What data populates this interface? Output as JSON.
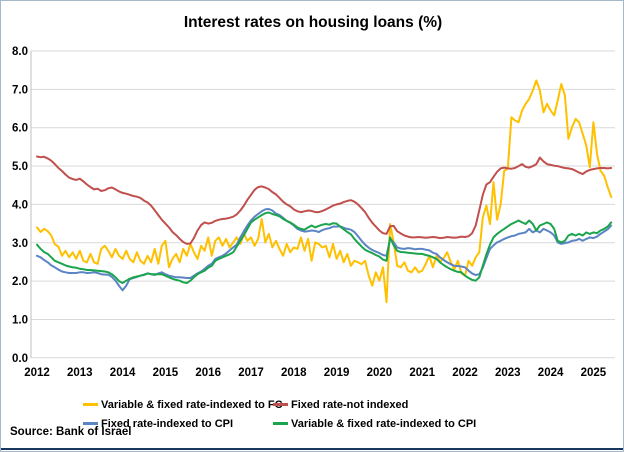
{
  "title": "Interest rates on housing loans (%)",
  "source": "Source: Bank of Israel",
  "colors": {
    "fc": "#FFC000",
    "not_indexed": "#C0504D",
    "fixed_cpi": "#5B84C4",
    "variable_cpi": "#1AA54C",
    "grid": "#D9D9D9",
    "axis": "#BFBFBF",
    "frame_border": "#A7B9C9",
    "bottom_rule": "#17375E"
  },
  "chart_data": {
    "type": "line",
    "title": "Interest rates on housing loans (%)",
    "xlabel": "",
    "ylabel": "",
    "ylim": [
      0.0,
      8.0
    ],
    "grid": true,
    "legend_position": "bottom",
    "x_unit": "month",
    "x_start": "2012-01",
    "x_end": "2025-06",
    "y_ticks": [
      "0.0",
      "1.0",
      "2.0",
      "3.0",
      "4.0",
      "5.0",
      "6.0",
      "7.0",
      "8.0"
    ],
    "x_tick_labels": [
      "2012",
      "2013",
      "2014",
      "2015",
      "2016",
      "2017",
      "2018",
      "2019",
      "2020",
      "2021",
      "2022",
      "2023",
      "2024",
      "2025"
    ],
    "series": [
      {
        "name": "Variable & fixed rate-indexed to FC",
        "color": "#FFC000",
        "values": [
          3.4,
          3.28,
          3.36,
          3.3,
          3.19,
          2.96,
          2.9,
          2.66,
          2.79,
          2.62,
          2.75,
          2.58,
          2.79,
          2.53,
          2.49,
          2.71,
          2.49,
          2.45,
          2.84,
          2.92,
          2.79,
          2.62,
          2.84,
          2.66,
          2.58,
          2.79,
          2.58,
          2.49,
          2.75,
          2.53,
          2.45,
          2.66,
          2.49,
          2.84,
          2.45,
          2.92,
          3.05,
          2.36,
          2.58,
          2.71,
          2.49,
          2.84,
          2.66,
          2.97,
          2.75,
          2.58,
          2.92,
          2.79,
          3.14,
          2.66,
          3.05,
          3.14,
          2.92,
          3.1,
          2.88,
          3.01,
          3.14,
          2.97,
          3.23,
          3.05,
          3.14,
          2.92,
          3.1,
          3.62,
          3.01,
          3.23,
          2.88,
          3.05,
          2.84,
          2.66,
          2.97,
          2.75,
          2.88,
          2.84,
          3.14,
          2.79,
          3.1,
          2.53,
          3.01,
          2.97,
          2.88,
          2.92,
          2.62,
          2.97,
          2.58,
          2.79,
          2.49,
          2.71,
          2.4,
          2.53,
          2.49,
          2.44,
          2.53,
          2.14,
          1.88,
          2.23,
          2.01,
          2.36,
          1.45,
          3.49,
          3.01,
          2.4,
          2.36,
          2.49,
          2.27,
          2.23,
          2.36,
          2.23,
          2.27,
          2.45,
          2.66,
          2.36,
          2.66,
          2.5,
          2.6,
          2.75,
          2.5,
          2.31,
          2.53,
          2.2,
          2.14,
          2.53,
          2.4,
          2.62,
          2.75,
          3.66,
          3.97,
          3.49,
          4.58,
          3.6,
          4.01,
          4.88,
          4.93,
          6.27,
          6.19,
          6.14,
          6.45,
          6.62,
          6.75,
          6.97,
          7.23,
          6.97,
          6.4,
          6.62,
          6.45,
          6.32,
          6.71,
          7.14,
          6.84,
          5.71,
          6.01,
          6.23,
          6.14,
          5.84,
          5.53,
          4.97,
          6.14,
          5.32,
          4.88,
          4.75,
          4.45,
          4.19
        ]
      },
      {
        "name": "Fixed rate-not indexed",
        "color": "#C0504D",
        "values": [
          5.25,
          5.23,
          5.24,
          5.2,
          5.14,
          5.05,
          4.95,
          4.87,
          4.78,
          4.7,
          4.66,
          4.64,
          4.67,
          4.6,
          4.52,
          4.45,
          4.39,
          4.41,
          4.35,
          4.37,
          4.42,
          4.44,
          4.39,
          4.34,
          4.3,
          4.28,
          4.25,
          4.22,
          4.2,
          4.17,
          4.1,
          4.05,
          3.97,
          3.85,
          3.72,
          3.6,
          3.5,
          3.4,
          3.28,
          3.2,
          3.1,
          3.02,
          2.97,
          2.98,
          3.12,
          3.32,
          3.46,
          3.53,
          3.5,
          3.52,
          3.57,
          3.6,
          3.62,
          3.63,
          3.65,
          3.68,
          3.74,
          3.84,
          3.97,
          4.12,
          4.25,
          4.38,
          4.45,
          4.47,
          4.44,
          4.4,
          4.32,
          4.26,
          4.17,
          4.07,
          4.0,
          3.95,
          3.87,
          3.82,
          3.8,
          3.82,
          3.84,
          3.83,
          3.8,
          3.8,
          3.83,
          3.87,
          3.92,
          3.97,
          4.0,
          4.02,
          4.06,
          4.09,
          4.11,
          4.07,
          4.0,
          3.9,
          3.8,
          3.65,
          3.52,
          3.42,
          3.32,
          3.25,
          3.23,
          3.43,
          3.44,
          3.3,
          3.24,
          3.19,
          3.16,
          3.14,
          3.14,
          3.15,
          3.14,
          3.13,
          3.14,
          3.15,
          3.14,
          3.12,
          3.13,
          3.15,
          3.14,
          3.13,
          3.14,
          3.16,
          3.15,
          3.17,
          3.25,
          3.45,
          3.85,
          4.25,
          4.52,
          4.58,
          4.72,
          4.85,
          4.94,
          4.96,
          4.94,
          4.93,
          4.95,
          5.0,
          5.05,
          4.98,
          4.96,
          5.0,
          5.05,
          5.22,
          5.12,
          5.05,
          5.03,
          5.01,
          5.0,
          4.97,
          4.95,
          4.94,
          4.92,
          4.88,
          4.83,
          4.79,
          4.86,
          4.9,
          4.92,
          4.94,
          4.95,
          4.95,
          4.94,
          4.95
        ]
      },
      {
        "name": "Fixed rate-indexed to CPI",
        "color": "#5B84C4",
        "values": [
          2.66,
          2.62,
          2.55,
          2.49,
          2.41,
          2.36,
          2.3,
          2.25,
          2.23,
          2.21,
          2.21,
          2.21,
          2.23,
          2.23,
          2.21,
          2.22,
          2.23,
          2.21,
          2.18,
          2.17,
          2.17,
          2.11,
          2.01,
          1.88,
          1.76,
          1.88,
          2.05,
          2.08,
          2.11,
          2.14,
          2.17,
          2.2,
          2.18,
          2.16,
          2.2,
          2.23,
          2.18,
          2.14,
          2.12,
          2.1,
          2.1,
          2.09,
          2.08,
          2.08,
          2.14,
          2.2,
          2.25,
          2.32,
          2.4,
          2.45,
          2.58,
          2.62,
          2.66,
          2.72,
          2.8,
          2.88,
          2.95,
          3.14,
          3.3,
          3.45,
          3.58,
          3.68,
          3.75,
          3.82,
          3.87,
          3.88,
          3.84,
          3.76,
          3.72,
          3.65,
          3.57,
          3.52,
          3.45,
          3.36,
          3.32,
          3.29,
          3.3,
          3.32,
          3.31,
          3.28,
          3.33,
          3.36,
          3.38,
          3.42,
          3.42,
          3.43,
          3.39,
          3.36,
          3.34,
          3.28,
          3.17,
          3.05,
          2.95,
          2.87,
          2.81,
          2.77,
          2.73,
          2.68,
          2.66,
          3.1,
          3.01,
          2.88,
          2.85,
          2.84,
          2.86,
          2.85,
          2.83,
          2.84,
          2.84,
          2.82,
          2.8,
          2.74,
          2.71,
          2.62,
          2.55,
          2.49,
          2.44,
          2.4,
          2.39,
          2.38,
          2.36,
          2.27,
          2.2,
          2.16,
          2.18,
          2.35,
          2.6,
          2.84,
          2.93,
          3.01,
          3.05,
          3.1,
          3.14,
          3.17,
          3.19,
          3.23,
          3.25,
          3.27,
          3.36,
          3.27,
          3.32,
          3.27,
          3.36,
          3.32,
          3.27,
          3.19,
          3.01,
          2.97,
          2.99,
          3.01,
          3.05,
          3.06,
          3.1,
          3.05,
          3.1,
          3.14,
          3.12,
          3.16,
          3.23,
          3.29,
          3.35,
          3.45
        ]
      },
      {
        "name": "Variable & fixed rate-indexed to CPI",
        "color": "#1AA54C",
        "values": [
          2.95,
          2.84,
          2.76,
          2.71,
          2.62,
          2.53,
          2.49,
          2.45,
          2.41,
          2.38,
          2.36,
          2.35,
          2.32,
          2.31,
          2.29,
          2.29,
          2.28,
          2.27,
          2.26,
          2.25,
          2.23,
          2.18,
          2.1,
          2.0,
          1.95,
          2.01,
          2.06,
          2.1,
          2.12,
          2.14,
          2.16,
          2.2,
          2.18,
          2.18,
          2.18,
          2.18,
          2.14,
          2.1,
          2.06,
          2.03,
          2.01,
          1.97,
          1.95,
          2.01,
          2.1,
          2.18,
          2.23,
          2.27,
          2.35,
          2.4,
          2.53,
          2.58,
          2.62,
          2.66,
          2.7,
          2.75,
          2.9,
          3.05,
          3.2,
          3.36,
          3.53,
          3.6,
          3.66,
          3.72,
          3.77,
          3.79,
          3.75,
          3.72,
          3.69,
          3.62,
          3.57,
          3.53,
          3.47,
          3.4,
          3.36,
          3.34,
          3.4,
          3.45,
          3.4,
          3.44,
          3.47,
          3.49,
          3.47,
          3.51,
          3.5,
          3.42,
          3.35,
          3.28,
          3.22,
          3.1,
          3.0,
          2.9,
          2.82,
          2.77,
          2.73,
          2.68,
          2.64,
          2.56,
          2.53,
          3.14,
          2.93,
          2.79,
          2.76,
          2.75,
          2.74,
          2.73,
          2.72,
          2.71,
          2.71,
          2.68,
          2.66,
          2.62,
          2.58,
          2.49,
          2.42,
          2.36,
          2.31,
          2.27,
          2.24,
          2.23,
          2.14,
          2.08,
          2.03,
          2.01,
          2.1,
          2.4,
          2.7,
          2.95,
          3.14,
          3.23,
          3.3,
          3.36,
          3.43,
          3.49,
          3.53,
          3.58,
          3.53,
          3.49,
          3.58,
          3.49,
          3.32,
          3.45,
          3.49,
          3.53,
          3.49,
          3.36,
          3.05,
          3.01,
          3.05,
          3.19,
          3.23,
          3.19,
          3.23,
          3.19,
          3.27,
          3.23,
          3.27,
          3.25,
          3.32,
          3.36,
          3.42,
          3.53
        ]
      }
    ]
  }
}
